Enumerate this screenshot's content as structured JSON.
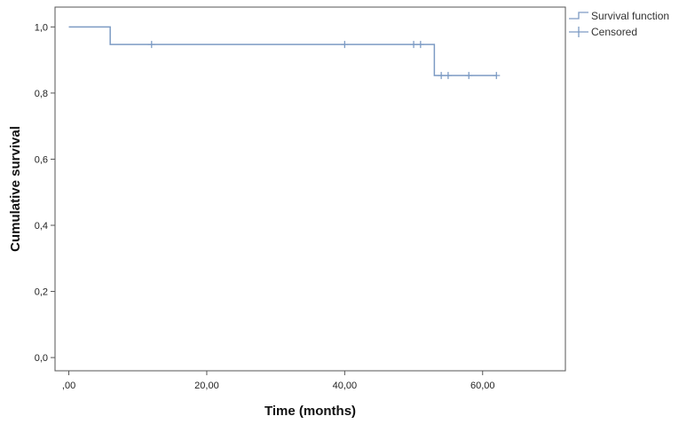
{
  "chart_data": {
    "type": "line",
    "xlabel": "Time (months)",
    "ylabel": "Cumulative survival",
    "xlim": [
      -2,
      72
    ],
    "ylim": [
      -0.04,
      1.06
    ],
    "x_ticks": [
      0,
      20,
      40,
      60
    ],
    "x_tick_labels": [
      ",00",
      "20,00",
      "40,00",
      "60,00"
    ],
    "y_ticks": [
      0,
      0.2,
      0.4,
      0.6,
      0.8,
      1.0
    ],
    "y_tick_labels": [
      "0,0",
      "0,2",
      "0,4",
      "0,6",
      "0,8",
      "1,0"
    ],
    "grid": false,
    "legend_position": "top-right",
    "legend": [
      "Survival function",
      "Censored"
    ],
    "series": [
      {
        "name": "Survival function",
        "step": true,
        "x": [
          0,
          6,
          53,
          62
        ],
        "y": [
          1.0,
          0.947,
          0.853,
          0.853
        ]
      },
      {
        "name": "Censored",
        "x": [
          12,
          40,
          50,
          51,
          54,
          55,
          58,
          62
        ],
        "y": [
          0.947,
          0.947,
          0.947,
          0.947,
          0.853,
          0.853,
          0.853,
          0.853
        ]
      }
    ],
    "line_color": "#7d9bc4",
    "axis_color": "#555555"
  }
}
